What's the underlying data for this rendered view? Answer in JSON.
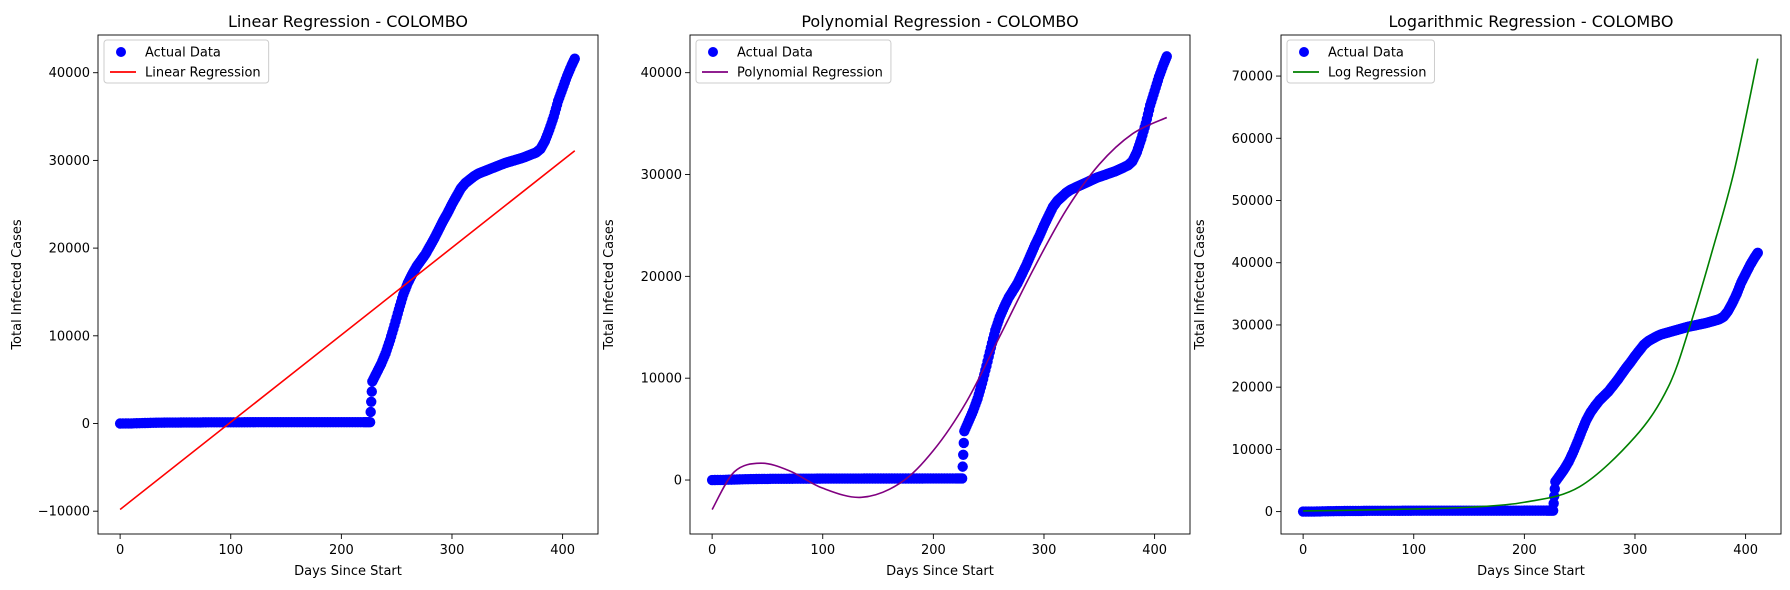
{
  "chart_data": [
    {
      "type": "scatter",
      "title": "Linear Regression - COLOMBO",
      "xlabel": "Days Since Start",
      "ylabel": "Total Infected Cases",
      "xlim": [
        -20,
        432
      ],
      "ylim": [
        -12600,
        44300
      ],
      "xticks": [
        0,
        100,
        200,
        300,
        400
      ],
      "xtick_labels": [
        "0",
        "100",
        "200",
        "300",
        "400"
      ],
      "yticks": [
        -10000,
        0,
        10000,
        20000,
        30000,
        40000
      ],
      "ytick_labels": [
        "−10000",
        "0",
        "10000",
        "20000",
        "30000",
        "40000"
      ],
      "legend": "top-left",
      "colors": {
        "actual": "#0000ff",
        "fit": "#ff0000"
      },
      "series": [
        {
          "name": "Actual Data",
          "kind": "scatter",
          "color": "#0000ff"
        },
        {
          "name": "Linear Regression",
          "kind": "line",
          "color": "#ff0000",
          "x": [
            0,
            411
          ],
          "y": [
            -9800,
            31100
          ]
        }
      ]
    },
    {
      "type": "scatter",
      "title": "Polynomial Regression - COLOMBO",
      "xlabel": "Days Since Start",
      "ylabel": "Total Infected Cases",
      "xlim": [
        -20,
        432
      ],
      "ylim": [
        -5300,
        43700
      ],
      "xticks": [
        0,
        100,
        200,
        300,
        400
      ],
      "xtick_labels": [
        "0",
        "100",
        "200",
        "300",
        "400"
      ],
      "yticks": [
        0,
        10000,
        20000,
        30000,
        40000
      ],
      "ytick_labels": [
        "0",
        "10000",
        "20000",
        "30000",
        "40000"
      ],
      "legend": "top-left",
      "colors": {
        "actual": "#0000ff",
        "fit": "#800080"
      },
      "series": [
        {
          "name": "Actual Data",
          "kind": "scatter",
          "color": "#0000ff"
        },
        {
          "name": "Polynomial Regression",
          "kind": "line",
          "color": "#800080",
          "x": [
            0,
            20,
            44,
            70,
            100,
            135,
            170,
            200,
            230,
            260,
            290,
            320,
            350,
            380,
            411
          ],
          "y": [
            -2900,
            800,
            1650,
            900,
            -800,
            -1700,
            -300,
            2900,
            7700,
            14100,
            20600,
            26500,
            31000,
            34000,
            35600
          ]
        }
      ]
    },
    {
      "type": "scatter",
      "title": "Logarithmic Regression - COLOMBO",
      "xlabel": "Days Since Start",
      "ylabel": "Total Infected Cases",
      "xlim": [
        -20,
        432
      ],
      "ylim": [
        -3600,
        76600
      ],
      "xticks": [
        0,
        100,
        200,
        300,
        400
      ],
      "xtick_labels": [
        "0",
        "100",
        "200",
        "300",
        "400"
      ],
      "yticks": [
        0,
        10000,
        20000,
        30000,
        40000,
        50000,
        60000,
        70000
      ],
      "ytick_labels": [
        "0",
        "10000",
        "20000",
        "30000",
        "40000",
        "50000",
        "60000",
        "70000"
      ],
      "legend": "top-left",
      "colors": {
        "actual": "#0000ff",
        "fit": "#008000"
      },
      "series": [
        {
          "name": "Actual Data",
          "kind": "scatter",
          "color": "#0000ff"
        },
        {
          "name": "Log Regression",
          "kind": "line",
          "color": "#008000",
          "x": [
            0,
            50,
            100,
            150,
            200,
            250,
            300,
            330,
            350,
            370,
            390,
            411
          ],
          "y": [
            100,
            250,
            420,
            700,
            1500,
            4000,
            12000,
            20000,
            30000,
            42000,
            55000,
            72800
          ]
        }
      ]
    }
  ],
  "actual_data": {
    "x": [
      0,
      10,
      20,
      30,
      40,
      50,
      60,
      70,
      80,
      90,
      100,
      110,
      120,
      130,
      140,
      150,
      160,
      170,
      180,
      190,
      200,
      210,
      220,
      226,
      228,
      232,
      236,
      240,
      244,
      248,
      252,
      256,
      260,
      264,
      268,
      272,
      276,
      280,
      284,
      288,
      292,
      296,
      300,
      304,
      308,
      312,
      316,
      320,
      324,
      328,
      332,
      336,
      340,
      344,
      348,
      352,
      356,
      360,
      364,
      368,
      372,
      376,
      380,
      384,
      388,
      392,
      396,
      400,
      404,
      408,
      411
    ],
    "y": [
      0,
      10,
      50,
      80,
      100,
      110,
      120,
      125,
      130,
      135,
      140,
      140,
      145,
      145,
      150,
      150,
      150,
      150,
      150,
      150,
      155,
      155,
      155,
      155,
      4800,
      5800,
      6800,
      8000,
      9500,
      11200,
      13000,
      14700,
      16000,
      17000,
      17900,
      18600,
      19300,
      20200,
      21100,
      22100,
      23100,
      24000,
      25000,
      25900,
      26800,
      27400,
      27800,
      28200,
      28500,
      28700,
      28900,
      29100,
      29300,
      29500,
      29700,
      29850,
      30000,
      30150,
      30300,
      30500,
      30700,
      30900,
      31300,
      32200,
      33500,
      35000,
      36800,
      38200,
      39600,
      40800,
      41600
    ]
  }
}
